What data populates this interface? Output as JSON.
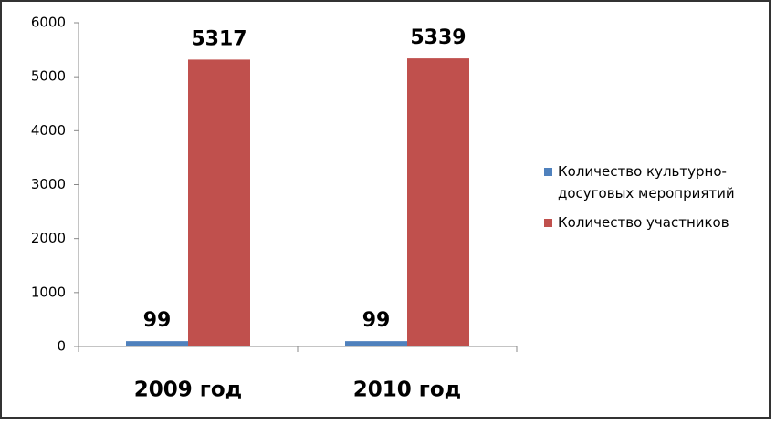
{
  "chart_data": {
    "type": "bar",
    "categories": [
      "2009 год",
      "2010 год"
    ],
    "series": [
      {
        "name": "Количество культурно-досуговых мероприятий",
        "color": "#4f81bd",
        "values": [
          99,
          99
        ]
      },
      {
        "name": "Количество участников",
        "color": "#c0504d",
        "values": [
          5317,
          5339
        ]
      }
    ],
    "ylim": [
      0,
      6000
    ],
    "yticks": [
      0,
      1000,
      2000,
      3000,
      4000,
      5000,
      6000
    ],
    "grid": false,
    "legend": "right",
    "data_labels": true
  }
}
